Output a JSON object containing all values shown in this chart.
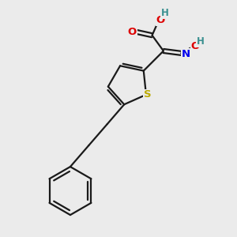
{
  "bg_color": "#ebebeb",
  "bond_color": "#1a1a1a",
  "bond_width": 1.6,
  "atom_colors": {
    "O": "#dd0000",
    "N": "#0000ee",
    "S": "#bbaa00",
    "H": "#3a9090",
    "C": "#1a1a1a"
  },
  "font_size": 8.5,
  "dbo": 0.05
}
